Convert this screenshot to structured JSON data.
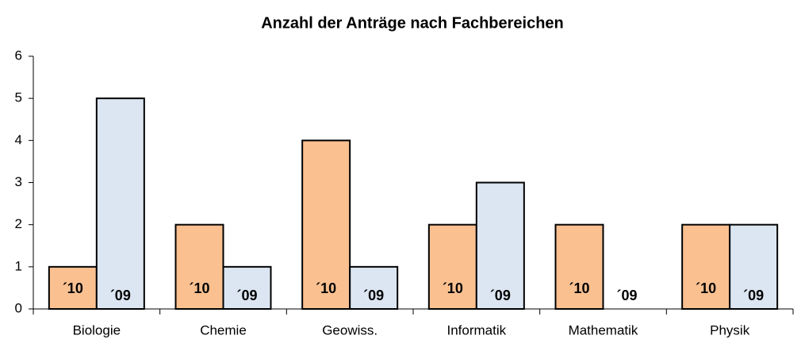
{
  "chart_data": {
    "type": "bar",
    "title": "Anzahl der Anträge nach Fachbereichen",
    "categories": [
      "Biologie",
      "Chemie",
      "Geowiss.",
      "Informatik",
      "Mathematik",
      "Physik"
    ],
    "series": [
      {
        "name": "´10",
        "color": "#fac090",
        "values": [
          1,
          2,
          4,
          2,
          2,
          2
        ]
      },
      {
        "name": "´09",
        "color": "#dce6f2",
        "values": [
          5,
          1,
          1,
          3,
          0,
          2
        ]
      }
    ],
    "ylim": [
      0,
      6
    ],
    "yticks": [
      0,
      1,
      2,
      3,
      4,
      5,
      6
    ],
    "grid": false
  }
}
